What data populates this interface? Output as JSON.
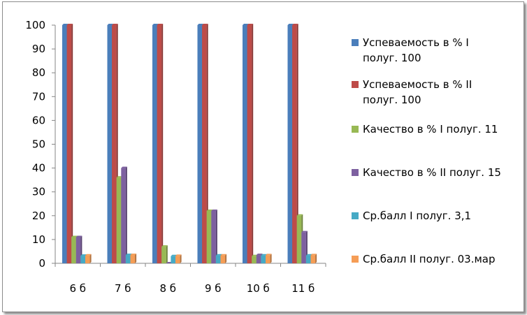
{
  "chart_data": {
    "type": "bar",
    "categories": [
      "6 б",
      "7 б",
      "8 б",
      "9 б",
      "10 б",
      "11 б"
    ],
    "ylim": [
      0,
      100
    ],
    "yticks": [
      0,
      10,
      20,
      30,
      40,
      50,
      60,
      70,
      80,
      90,
      100
    ],
    "grid": false,
    "legend_position": "right",
    "series": [
      {
        "name": "Успеваемость в % I полуг. 100",
        "legend_lines": [
          "Успеваемость в % I",
          "полуг. 100"
        ],
        "color": "#4a7ebb",
        "values": [
          100,
          100,
          100,
          100,
          100,
          100
        ]
      },
      {
        "name": "Успеваемость в % II полуг. 100",
        "legend_lines": [
          "Успеваемость в % II",
          "полуг. 100"
        ],
        "color": "#be4b48",
        "values": [
          100,
          100,
          100,
          100,
          100,
          100
        ]
      },
      {
        "name": "Качество в % I полуг. 11",
        "legend_lines": [
          "Качество в % I полуг. 11"
        ],
        "color": "#98b954",
        "values": [
          11,
          36,
          7,
          22,
          3,
          20
        ]
      },
      {
        "name": "Качество в % II полуг. 15",
        "legend_lines": [
          "Качество в % II полуг. 15"
        ],
        "color": "#7d60a0",
        "values": [
          11,
          40,
          0,
          22,
          3.5,
          13
        ]
      },
      {
        "name": "Ср.балл I полуг. 3,1",
        "legend_lines": [
          "Ср.балл I полуг. 3,1"
        ],
        "color": "#46aac5",
        "values": [
          3.2,
          3.5,
          3,
          3.3,
          3.3,
          3.3
        ]
      },
      {
        "name": "Ср.балл II полуг. 03.мар",
        "legend_lines": [
          "Ср.балл II полуг. 03.мар"
        ],
        "color": "#f59d56",
        "values": [
          3.3,
          3.5,
          3.1,
          3.3,
          3.4,
          3.4
        ]
      }
    ]
  }
}
